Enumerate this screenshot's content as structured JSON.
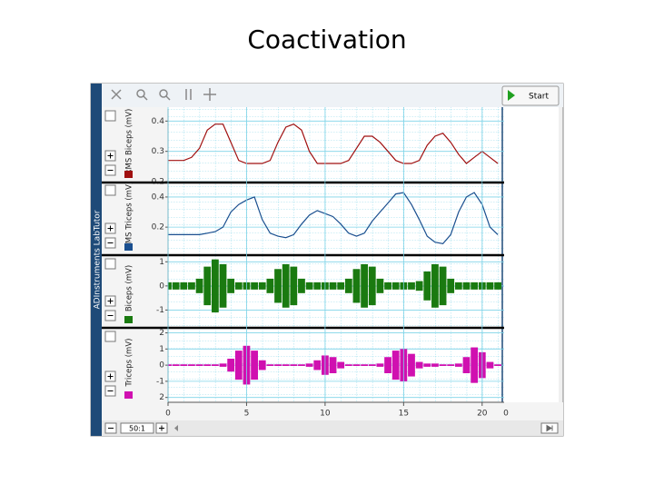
{
  "title": "Coactivation",
  "app_name": "ADInstruments LabTutor",
  "start_button": "Start",
  "zoom": "50:1",
  "chart_data": {
    "type": "line",
    "x": [
      0,
      0.5,
      1,
      1.5,
      2,
      2.5,
      3,
      3.5,
      4,
      4.5,
      5,
      5.5,
      6,
      6.5,
      7,
      7.5,
      8,
      8.5,
      9,
      9.5,
      10,
      10.5,
      11,
      11.5,
      12,
      12.5,
      13,
      13.5,
      14,
      14.5,
      15,
      15.5,
      16,
      16.5,
      17,
      17.5,
      18,
      18.5,
      19,
      19.5,
      20,
      20.5,
      21
    ],
    "xlim": [
      0,
      21.4
    ],
    "xticks": [
      0,
      5,
      10,
      15,
      20
    ],
    "next_block_start": 0,
    "grid": true,
    "series": [
      {
        "name": "RMS Biceps (mV)",
        "color": "#a01010",
        "type": "line",
        "ylim": [
          0.2,
          0.44
        ],
        "yticks": [
          0.4,
          0.3,
          0.2
        ],
        "values": [
          0.27,
          0.27,
          0.27,
          0.28,
          0.31,
          0.37,
          0.39,
          0.39,
          0.33,
          0.27,
          0.26,
          0.26,
          0.26,
          0.27,
          0.33,
          0.38,
          0.39,
          0.37,
          0.3,
          0.26,
          0.26,
          0.26,
          0.26,
          0.27,
          0.31,
          0.35,
          0.35,
          0.33,
          0.3,
          0.27,
          0.26,
          0.26,
          0.27,
          0.32,
          0.35,
          0.36,
          0.33,
          0.29,
          0.26,
          0.28,
          0.3,
          0.28,
          0.26
        ]
      },
      {
        "name": "RMS Triceps (mV)",
        "color": "#1a4f8f",
        "type": "line",
        "ylim": [
          0.02,
          0.49
        ],
        "yticks": [
          0.4,
          0.2
        ],
        "values": [
          0.15,
          0.15,
          0.15,
          0.15,
          0.15,
          0.16,
          0.17,
          0.2,
          0.3,
          0.35,
          0.38,
          0.4,
          0.25,
          0.16,
          0.14,
          0.13,
          0.15,
          0.22,
          0.28,
          0.31,
          0.29,
          0.27,
          0.22,
          0.16,
          0.14,
          0.16,
          0.24,
          0.3,
          0.36,
          0.42,
          0.43,
          0.35,
          0.25,
          0.14,
          0.1,
          0.09,
          0.15,
          0.3,
          0.4,
          0.43,
          0.35,
          0.2,
          0.15
        ]
      },
      {
        "name": "Biceps (mV)",
        "color": "#1a7a10",
        "type": "bar",
        "ylim": [
          -1.7,
          1.2
        ],
        "yticks": [
          1,
          0,
          -1
        ],
        "values": [
          0.15,
          0.15,
          0.15,
          0.15,
          0.3,
          0.8,
          1.1,
          0.9,
          0.3,
          0.15,
          0.15,
          0.15,
          0.15,
          0.3,
          0.7,
          0.9,
          0.8,
          0.3,
          0.15,
          0.15,
          0.15,
          0.15,
          0.15,
          0.3,
          0.7,
          0.9,
          0.8,
          0.3,
          0.15,
          0.15,
          0.15,
          0.15,
          0.2,
          0.6,
          0.9,
          0.8,
          0.3,
          0.15,
          0.15,
          0.15,
          0.15,
          0.15,
          0.15
        ]
      },
      {
        "name": "Triceps (mV)",
        "color": "#d010b0",
        "type": "bar",
        "ylim": [
          -2.3,
          2.2
        ],
        "yticks": [
          2,
          1,
          0,
          -1,
          {
            "value": -2,
            "label": "2"
          }
        ],
        "values": [
          0.05,
          0.05,
          0.05,
          0.05,
          0.05,
          0.05,
          0.05,
          0.1,
          0.4,
          0.9,
          1.2,
          0.9,
          0.3,
          0.05,
          0.05,
          0.05,
          0.05,
          0.05,
          0.1,
          0.3,
          0.6,
          0.5,
          0.2,
          0.05,
          0.05,
          0.05,
          0.05,
          0.1,
          0.5,
          0.9,
          1.0,
          0.7,
          0.2,
          0.1,
          0.1,
          0.05,
          0.05,
          0.1,
          0.5,
          1.1,
          0.8,
          0.2,
          0.05
        ]
      }
    ]
  }
}
